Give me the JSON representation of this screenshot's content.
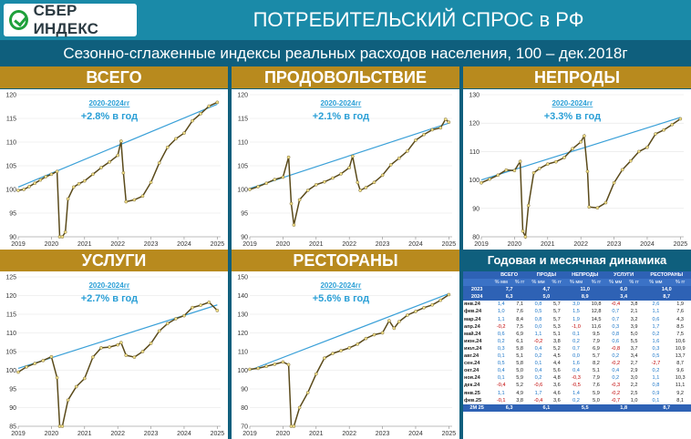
{
  "header": {
    "logo_text": "СБЕР ИНДЕКС",
    "title": "ПОТРЕБИТЕЛЬСКИЙ СПРОС в РФ",
    "subtitle": "Сезонно-сглаженные индексы реальных расходов населения, 100 – дек.2018г"
  },
  "colors": {
    "background": "#0f5f7d",
    "header": "#1a8aa8",
    "band": "#b88a1e",
    "series_line": "#5a4a1a",
    "series_point": "#f2e08a",
    "trend": "#3aa0d8",
    "annotation": "#2a9fd6",
    "table_header": "#2e62b5"
  },
  "chart_data": [
    {
      "type": "line",
      "title": "ВСЕГО",
      "annotation_period": "2020-2024гг",
      "annotation_growth": "+2.8% в год",
      "ylim": [
        90,
        120
      ],
      "yticks": [
        90,
        95,
        100,
        105,
        110,
        115,
        120
      ],
      "xticks": [
        "2019",
        "2020",
        "2021",
        "2022",
        "2023",
        "2024",
        "2025"
      ],
      "xlim": [
        2019.0,
        2025.1
      ],
      "trend": [
        [
          2019.0,
          100.5
        ],
        [
          2025.0,
          118.0
        ]
      ],
      "series": [
        {
          "name": "",
          "points": [
            [
              2019.0,
              99.8
            ],
            [
              2019.17,
              100.0
            ],
            [
              2019.33,
              100.6
            ],
            [
              2019.5,
              101.3
            ],
            [
              2019.67,
              102.0
            ],
            [
              2019.83,
              102.7
            ],
            [
              2020.0,
              103.2
            ],
            [
              2020.17,
              103.8
            ],
            [
              2020.25,
              90.0
            ],
            [
              2020.33,
              90.0
            ],
            [
              2020.42,
              91.0
            ],
            [
              2020.5,
              98.0
            ],
            [
              2020.67,
              100.5
            ],
            [
              2020.83,
              101.2
            ],
            [
              2021.0,
              101.8
            ],
            [
              2021.25,
              103.2
            ],
            [
              2021.5,
              104.6
            ],
            [
              2021.75,
              105.8
            ],
            [
              2022.0,
              107.2
            ],
            [
              2022.1,
              110.2
            ],
            [
              2022.17,
              103.5
            ],
            [
              2022.25,
              97.4
            ],
            [
              2022.5,
              97.8
            ],
            [
              2022.75,
              98.6
            ],
            [
              2023.0,
              101.5
            ],
            [
              2023.25,
              105.6
            ],
            [
              2023.5,
              108.9
            ],
            [
              2023.75,
              110.7
            ],
            [
              2024.0,
              111.9
            ],
            [
              2024.25,
              114.5
            ],
            [
              2024.5,
              116.0
            ],
            [
              2024.75,
              117.6
            ],
            [
              2025.0,
              118.4
            ]
          ]
        }
      ]
    },
    {
      "type": "line",
      "title": "ПРОДОВОЛЬСТВИЕ",
      "annotation_period": "2020-2024гг",
      "annotation_growth": "+2.1% в год",
      "ylim": [
        90,
        120
      ],
      "yticks": [
        90,
        95,
        100,
        105,
        110,
        115,
        120
      ],
      "xticks": [
        "2019",
        "2020",
        "2021",
        "2022",
        "2023",
        "2024",
        "2025"
      ],
      "xlim": [
        2019.0,
        2025.1
      ],
      "trend": [
        [
          2019.0,
          100.2
        ],
        [
          2025.0,
          114.0
        ]
      ],
      "series": [
        {
          "name": "",
          "points": [
            [
              2019.0,
              100.0
            ],
            [
              2019.25,
              100.6
            ],
            [
              2019.5,
              101.3
            ],
            [
              2019.75,
              102.1
            ],
            [
              2020.0,
              102.6
            ],
            [
              2020.17,
              106.8
            ],
            [
              2020.25,
              97.0
            ],
            [
              2020.33,
              92.5
            ],
            [
              2020.5,
              97.8
            ],
            [
              2020.75,
              99.8
            ],
            [
              2021.0,
              101.0
            ],
            [
              2021.25,
              101.6
            ],
            [
              2021.5,
              102.4
            ],
            [
              2021.75,
              103.3
            ],
            [
              2022.0,
              104.6
            ],
            [
              2022.1,
              107.0
            ],
            [
              2022.25,
              101.5
            ],
            [
              2022.33,
              99.8
            ],
            [
              2022.5,
              100.4
            ],
            [
              2022.75,
              101.5
            ],
            [
              2023.0,
              103.0
            ],
            [
              2023.25,
              105.2
            ],
            [
              2023.5,
              106.6
            ],
            [
              2023.75,
              108.1
            ],
            [
              2024.0,
              110.4
            ],
            [
              2024.25,
              111.6
            ],
            [
              2024.5,
              112.6
            ],
            [
              2024.75,
              113.0
            ],
            [
              2024.9,
              114.8
            ],
            [
              2025.0,
              114.2
            ]
          ]
        }
      ]
    },
    {
      "type": "line",
      "title": "НЕПРОДЫ",
      "annotation_period": "2020-2024гг",
      "annotation_growth": "+3.3% в год",
      "ylim": [
        80,
        130
      ],
      "yticks": [
        80,
        90,
        100,
        110,
        120,
        130
      ],
      "xticks": [
        "2019",
        "2020",
        "2021",
        "2022",
        "2023",
        "2024",
        "2025"
      ],
      "xlim": [
        2019.0,
        2025.1
      ],
      "trend": [
        [
          2019.0,
          100.0
        ],
        [
          2025.0,
          122.0
        ]
      ],
      "series": [
        {
          "name": "",
          "points": [
            [
              2019.0,
              99.0
            ],
            [
              2019.25,
              100.3
            ],
            [
              2019.5,
              101.7
            ],
            [
              2019.75,
              103.5
            ],
            [
              2020.0,
              103.3
            ],
            [
              2020.17,
              106.5
            ],
            [
              2020.25,
              82.0
            ],
            [
              2020.33,
              80.0
            ],
            [
              2020.42,
              91.0
            ],
            [
              2020.58,
              102.5
            ],
            [
              2020.75,
              104.0
            ],
            [
              2021.0,
              105.6
            ],
            [
              2021.25,
              106.4
            ],
            [
              2021.5,
              107.9
            ],
            [
              2021.75,
              111.0
            ],
            [
              2022.0,
              113.4
            ],
            [
              2022.1,
              115.5
            ],
            [
              2022.2,
              103.0
            ],
            [
              2022.25,
              90.5
            ],
            [
              2022.5,
              90.2
            ],
            [
              2022.75,
              92.0
            ],
            [
              2023.0,
              99.0
            ],
            [
              2023.25,
              103.6
            ],
            [
              2023.5,
              106.7
            ],
            [
              2023.75,
              110.0
            ],
            [
              2024.0,
              111.5
            ],
            [
              2024.25,
              116.2
            ],
            [
              2024.5,
              117.6
            ],
            [
              2024.75,
              119.5
            ],
            [
              2025.0,
              121.5
            ]
          ]
        }
      ]
    },
    {
      "type": "line",
      "title": "УСЛУГИ",
      "annotation_period": "2020-2024гг",
      "annotation_growth": "+2.7% в год",
      "ylim": [
        85,
        125
      ],
      "yticks": [
        85,
        90,
        95,
        100,
        105,
        110,
        115,
        120,
        125
      ],
      "xticks": [
        "2019",
        "2020",
        "2021",
        "2022",
        "2023",
        "2024",
        "2025"
      ],
      "xlim": [
        2019.0,
        2025.1
      ],
      "trend": [
        [
          2019.0,
          100.5
        ],
        [
          2025.0,
          117.5
        ]
      ],
      "series": [
        {
          "name": "",
          "points": [
            [
              2019.0,
              99.5
            ],
            [
              2019.25,
              100.9
            ],
            [
              2019.5,
              101.8
            ],
            [
              2019.75,
              102.6
            ],
            [
              2020.0,
              103.6
            ],
            [
              2020.17,
              98.0
            ],
            [
              2020.25,
              85.0
            ],
            [
              2020.33,
              85.0
            ],
            [
              2020.5,
              92.0
            ],
            [
              2020.75,
              95.6
            ],
            [
              2021.0,
              97.8
            ],
            [
              2021.25,
              103.5
            ],
            [
              2021.5,
              106.0
            ],
            [
              2021.75,
              106.2
            ],
            [
              2022.0,
              106.8
            ],
            [
              2022.1,
              107.4
            ],
            [
              2022.25,
              104.0
            ],
            [
              2022.5,
              103.5
            ],
            [
              2022.75,
              105.0
            ],
            [
              2023.0,
              107.2
            ],
            [
              2023.25,
              110.5
            ],
            [
              2023.5,
              112.5
            ],
            [
              2023.75,
              113.8
            ],
            [
              2024.0,
              114.6
            ],
            [
              2024.25,
              116.8
            ],
            [
              2024.5,
              117.4
            ],
            [
              2024.75,
              118.2
            ],
            [
              2025.0,
              116.0
            ]
          ]
        }
      ]
    },
    {
      "type": "line",
      "title": "РЕСТОРАНЫ",
      "annotation_period": "2020-2024гг",
      "annotation_growth": "+5.6% в год",
      "ylim": [
        70,
        150
      ],
      "yticks": [
        70,
        80,
        90,
        100,
        110,
        120,
        130,
        140,
        150
      ],
      "xticks": [
        "2019",
        "2020",
        "2021",
        "2022",
        "2023",
        "2024",
        "2025"
      ],
      "xlim": [
        2019.0,
        2025.1
      ],
      "trend": [
        [
          2019.0,
          100.0
        ],
        [
          2025.0,
          141.0
        ]
      ],
      "series": [
        {
          "name": "",
          "points": [
            [
              2019.0,
              100.5
            ],
            [
              2019.25,
              101.0
            ],
            [
              2019.5,
              102.1
            ],
            [
              2019.75,
              103.2
            ],
            [
              2020.0,
              104.4
            ],
            [
              2020.17,
              103.0
            ],
            [
              2020.25,
              70.0
            ],
            [
              2020.33,
              70.0
            ],
            [
              2020.5,
              80.0
            ],
            [
              2020.75,
              88.0
            ],
            [
              2021.0,
              98.0
            ],
            [
              2021.25,
              106.5
            ],
            [
              2021.5,
              109.0
            ],
            [
              2021.75,
              110.5
            ],
            [
              2022.0,
              112.0
            ],
            [
              2022.25,
              114.0
            ],
            [
              2022.5,
              117.0
            ],
            [
              2022.75,
              119.0
            ],
            [
              2023.0,
              120.0
            ],
            [
              2023.2,
              126.5
            ],
            [
              2023.35,
              122.5
            ],
            [
              2023.5,
              126.0
            ],
            [
              2023.75,
              129.5
            ],
            [
              2024.0,
              131.5
            ],
            [
              2024.25,
              133.5
            ],
            [
              2024.5,
              135.0
            ],
            [
              2024.75,
              137.5
            ],
            [
              2025.0,
              140.5
            ]
          ]
        }
      ]
    }
  ],
  "table": {
    "title": "Годовая и месячная динамика",
    "groups": [
      "ВСЕГО",
      "ПРОДЫ",
      "НЕПРОДЫ",
      "УСЛУГИ",
      "РЕСТОРАНЫ"
    ],
    "subheaders": [
      "% мм",
      "% гг"
    ],
    "annual": [
      {
        "label": "2023",
        "values": [
          "7,7",
          "4,7",
          "11,0",
          "6,0",
          "14,0"
        ]
      },
      {
        "label": "2024",
        "values": [
          "6,3",
          "5,0",
          "8,9",
          "3,4",
          "8,7"
        ]
      }
    ],
    "rows": [
      {
        "label": "янв.24",
        "values": [
          "1,4",
          "7,1",
          "0,8",
          "5,7",
          "3,0",
          "10,8",
          "-0,4",
          "3,8",
          "2,6",
          "1,9"
        ]
      },
      {
        "label": "фев.24",
        "values": [
          "1,0",
          "7,6",
          "0,5",
          "5,7",
          "1,5",
          "12,8",
          "0,7",
          "2,1",
          "1,1",
          "7,6"
        ]
      },
      {
        "label": "мар.24",
        "values": [
          "1,1",
          "8,4",
          "0,8",
          "5,7",
          "1,9",
          "14,5",
          "0,7",
          "3,2",
          "0,6",
          "4,3"
        ]
      },
      {
        "label": "апр.24",
        "values": [
          "-0,2",
          "7,5",
          "0,0",
          "5,3",
          "-1,0",
          "11,6",
          "0,3",
          "3,9",
          "1,7",
          "8,5"
        ]
      },
      {
        "label": "май.24",
        "values": [
          "0,6",
          "6,9",
          "1,1",
          "5,1",
          "0,1",
          "9,5",
          "0,8",
          "5,0",
          "0,2",
          "7,5"
        ]
      },
      {
        "label": "июн.24",
        "values": [
          "0,2",
          "6,1",
          "-0,2",
          "3,8",
          "0,2",
          "7,9",
          "0,6",
          "5,5",
          "1,6",
          "10,6"
        ]
      },
      {
        "label": "июл.24",
        "values": [
          "0,3",
          "5,8",
          "0,4",
          "5,2",
          "0,7",
          "6,9",
          "-0,8",
          "3,7",
          "0,3",
          "10,9"
        ]
      },
      {
        "label": "авг.24",
        "values": [
          "0,1",
          "5,1",
          "0,2",
          "4,5",
          "0,0",
          "5,7",
          "0,2",
          "3,4",
          "0,5",
          "13,7"
        ]
      },
      {
        "label": "сен.24",
        "values": [
          "0,5",
          "5,8",
          "0,1",
          "4,4",
          "1,6",
          "8,2",
          "-0,2",
          "2,7",
          "-2,7",
          "8,7"
        ]
      },
      {
        "label": "окт.24",
        "values": [
          "0,4",
          "5,0",
          "0,4",
          "5,6",
          "0,4",
          "5,1",
          "0,4",
          "2,9",
          "0,2",
          "9,6"
        ]
      },
      {
        "label": "ноя.24",
        "values": [
          "0,1",
          "5,9",
          "0,2",
          "4,8",
          "-0,3",
          "7,9",
          "0,2",
          "3,0",
          "1,1",
          "10,3"
        ]
      },
      {
        "label": "дек.24",
        "values": [
          "-0,4",
          "5,2",
          "-0,6",
          "3,6",
          "-0,5",
          "7,6",
          "-0,3",
          "2,2",
          "0,8",
          "11,1"
        ]
      },
      {
        "label": "янв.25",
        "values": [
          "1,1",
          "4,9",
          "1,7",
          "4,6",
          "1,4",
          "5,9",
          "-0,2",
          "2,5",
          "0,9",
          "9,2"
        ]
      },
      {
        "label": "фев.25",
        "values": [
          "-0,1",
          "3,8",
          "-0,4",
          "3,6",
          "0,2",
          "5,0",
          "-0,7",
          "1,0",
          "0,1",
          "8,1"
        ]
      }
    ],
    "ytd": {
      "label": "2М 25",
      "values": [
        "6,3",
        "6,1",
        "5,5",
        "1,8",
        "8,7"
      ]
    }
  }
}
